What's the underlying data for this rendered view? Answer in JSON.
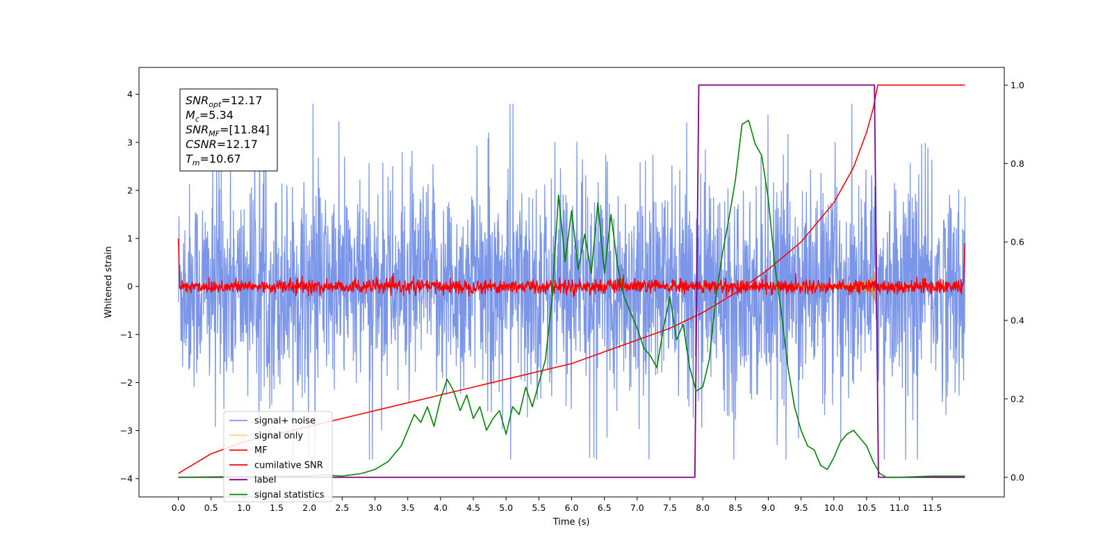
{
  "chart_data": {
    "type": "line",
    "xlabel": "Time (s)",
    "ylabel": "Whitened strain",
    "xlim": [
      -0.6,
      12.6
    ],
    "ylim": [
      -4.38,
      4.56
    ],
    "y2lim": [
      -0.05,
      1.045
    ],
    "x_ticks": [
      0.0,
      0.5,
      1.0,
      1.5,
      2.0,
      2.5,
      3.0,
      3.5,
      4.0,
      4.5,
      5.0,
      5.5,
      6.0,
      6.5,
      7.0,
      7.5,
      8.0,
      8.5,
      9.0,
      9.5,
      10.0,
      10.5,
      11.0,
      11.5
    ],
    "x_tick_labels": [
      "0.0",
      "0.5",
      "1.0",
      "1.5",
      "2.0",
      "2.5",
      "3.0",
      "3.5",
      "4.0",
      "4.5",
      "5.0",
      "5.5",
      "6.0",
      "6.5",
      "7.0",
      "7.5",
      "8.0",
      "8.5",
      "9.0",
      "9.5",
      "10.0",
      "10.5",
      "11.0",
      "11.5"
    ],
    "y_ticks": [
      -4,
      -3,
      -2,
      -1,
      0,
      1,
      2,
      3,
      4
    ],
    "y_tick_labels": [
      "−4",
      "−3",
      "−2",
      "−1",
      "0",
      "1",
      "2",
      "3",
      "4"
    ],
    "y2_ticks": [
      0.0,
      0.2,
      0.4,
      0.6,
      0.8,
      1.0
    ],
    "y2_tick_labels": [
      "0.0",
      "0.2",
      "0.4",
      "0.6",
      "0.8",
      "1.0"
    ],
    "grid": false,
    "legend_placement": "lower-left",
    "annotation": {
      "lines": [
        {
          "base": "SNR",
          "sub": "opt",
          "value": "=12.17"
        },
        {
          "base": "M",
          "sub": "c",
          "value": "=5.34"
        },
        {
          "base": "SNR",
          "sub": "MF",
          "value": "=[11.84]"
        },
        {
          "base": "CSNR",
          "sub": "",
          "value": "=12.17"
        },
        {
          "base": "T",
          "sub": "m",
          "value": "=10.67"
        }
      ]
    },
    "series": [
      {
        "name": "signal+ noise",
        "color": "#7b96e8",
        "axis": "left",
        "style": "dense noise, amplitude about ±2 to ±3.6",
        "x_range": [
          0.0,
          12.0
        ]
      },
      {
        "name": "signal only",
        "color": "#fdd28a",
        "axis": "left",
        "style": "chirp envelope growing until merger",
        "t_merger": 10.67
      },
      {
        "name": "MF",
        "color": "#ff0000",
        "axis": "left",
        "style": "noise about ±0.2, spikes to 1.0 at edges"
      },
      {
        "name": "cumilative SNR",
        "color": "#ff0000",
        "axis": "right",
        "x": [
          0.0,
          0.5,
          1.0,
          2.0,
          3.0,
          4.0,
          5.0,
          6.0,
          7.0,
          7.5,
          8.0,
          8.5,
          9.0,
          9.5,
          10.0,
          10.3,
          10.5,
          10.6,
          10.67,
          12.0
        ],
        "y": [
          0.01,
          0.06,
          0.09,
          0.13,
          0.17,
          0.21,
          0.25,
          0.29,
          0.35,
          0.38,
          0.42,
          0.47,
          0.53,
          0.6,
          0.7,
          0.79,
          0.88,
          0.94,
          1.0,
          1.0
        ]
      },
      {
        "name": "label",
        "color": "#800080",
        "axis": "right",
        "x": [
          0.0,
          7.88,
          7.94,
          10.62,
          10.68,
          12.0
        ],
        "y": [
          0.0,
          0.0,
          1.0,
          1.0,
          0.0,
          0.0
        ]
      },
      {
        "name": "signal statistics",
        "color": "#008000",
        "axis": "right",
        "x": [
          0.0,
          1.0,
          2.0,
          2.2,
          2.5,
          2.8,
          3.0,
          3.2,
          3.4,
          3.5,
          3.6,
          3.7,
          3.8,
          3.9,
          4.0,
          4.1,
          4.2,
          4.3,
          4.4,
          4.5,
          4.6,
          4.7,
          4.8,
          4.9,
          5.0,
          5.1,
          5.2,
          5.3,
          5.4,
          5.5,
          5.6,
          5.7,
          5.8,
          5.9,
          6.0,
          6.1,
          6.2,
          6.3,
          6.4,
          6.5,
          6.6,
          6.7,
          6.8,
          6.9,
          7.0,
          7.1,
          7.2,
          7.3,
          7.4,
          7.5,
          7.6,
          7.7,
          7.8,
          7.9,
          8.0,
          8.1,
          8.2,
          8.3,
          8.4,
          8.5,
          8.6,
          8.7,
          8.8,
          8.9,
          9.0,
          9.1,
          9.2,
          9.3,
          9.4,
          9.5,
          9.6,
          9.7,
          9.8,
          9.9,
          10.0,
          10.1,
          10.2,
          10.3,
          10.4,
          10.5,
          10.6,
          10.7,
          10.8,
          11.0,
          11.5,
          12.0
        ],
        "y": [
          0.0,
          0.002,
          0.003,
          0.006,
          0.003,
          0.01,
          0.02,
          0.04,
          0.08,
          0.12,
          0.16,
          0.14,
          0.18,
          0.13,
          0.2,
          0.25,
          0.22,
          0.17,
          0.21,
          0.15,
          0.18,
          0.12,
          0.15,
          0.17,
          0.11,
          0.18,
          0.16,
          0.23,
          0.18,
          0.24,
          0.3,
          0.45,
          0.72,
          0.55,
          0.68,
          0.53,
          0.62,
          0.52,
          0.7,
          0.52,
          0.67,
          0.54,
          0.46,
          0.42,
          0.38,
          0.33,
          0.31,
          0.28,
          0.38,
          0.46,
          0.35,
          0.39,
          0.28,
          0.22,
          0.23,
          0.3,
          0.46,
          0.57,
          0.66,
          0.76,
          0.9,
          0.91,
          0.85,
          0.82,
          0.71,
          0.54,
          0.42,
          0.28,
          0.18,
          0.12,
          0.08,
          0.07,
          0.03,
          0.02,
          0.05,
          0.09,
          0.11,
          0.12,
          0.1,
          0.08,
          0.04,
          0.01,
          0.0,
          0.0,
          0.003,
          0.003
        ]
      }
    ]
  }
}
